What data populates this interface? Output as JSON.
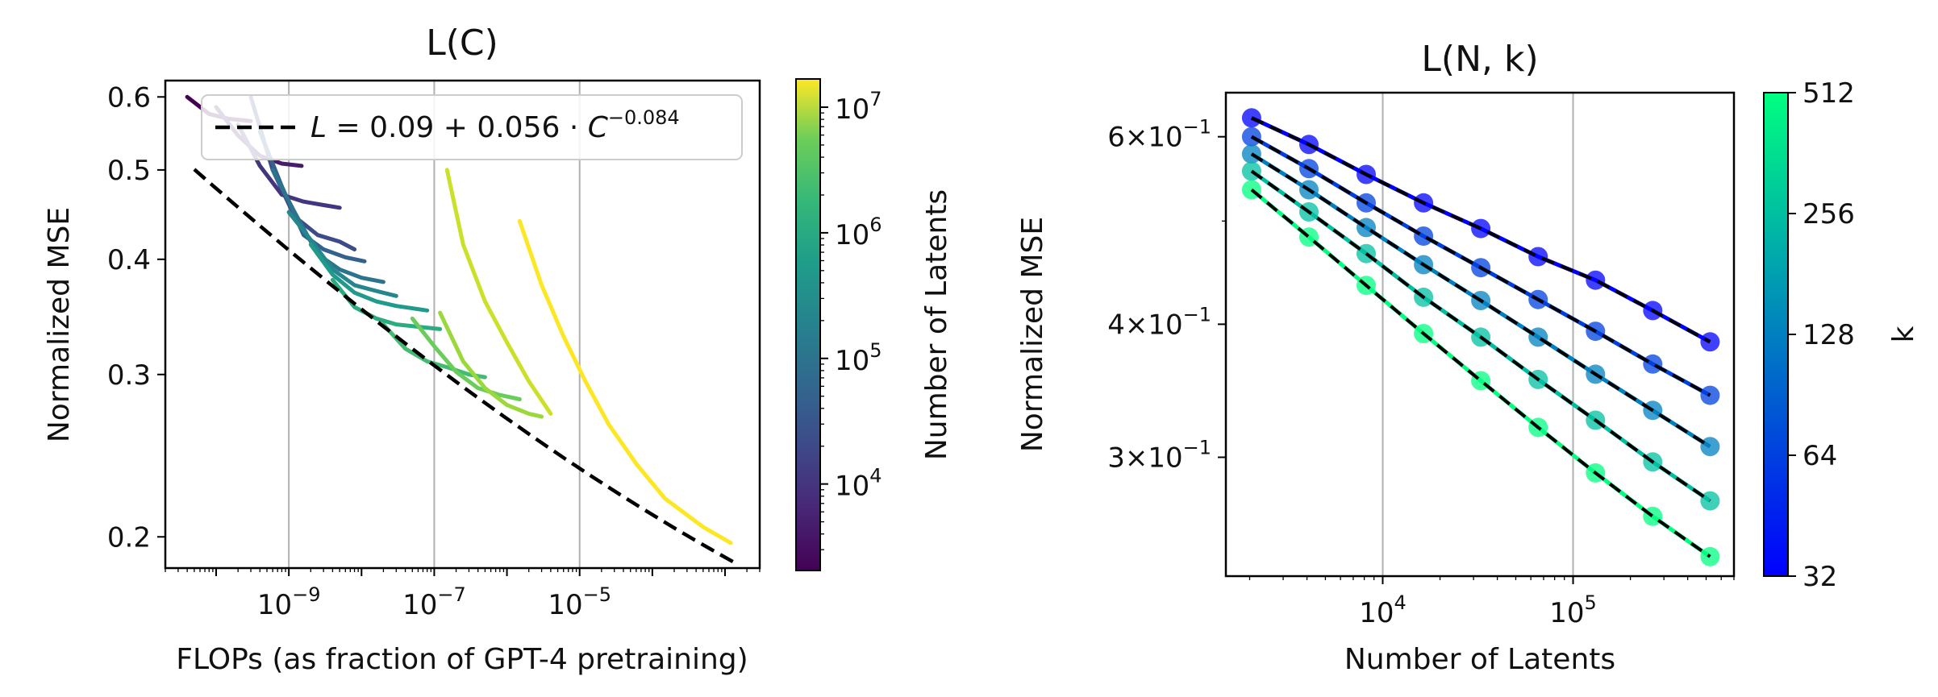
{
  "chart_data": [
    {
      "type": "line",
      "title": "L(C)",
      "xlabel": "FLOPs (as fraction of GPT-4 pretraining)",
      "ylabel": "Normalized MSE",
      "xscale": "log",
      "yscale": "log",
      "xlim": [
        2e-11,
        0.003
      ],
      "ylim": [
        0.185,
        0.625
      ],
      "x_ticks": [
        {
          "value": 1e-09,
          "base": "10",
          "exp": "−9"
        },
        {
          "value": 1e-07,
          "base": "10",
          "exp": "−7"
        },
        {
          "value": 1e-05,
          "base": "10",
          "exp": "−5"
        }
      ],
      "y_ticks": [
        {
          "value": 0.2,
          "label": "0.2"
        },
        {
          "value": 0.3,
          "label": "0.3"
        },
        {
          "value": 0.4,
          "label": "0.4"
        },
        {
          "value": 0.5,
          "label": "0.5"
        },
        {
          "value": 0.6,
          "label": "0.6"
        }
      ],
      "grid": "vertical at major x ticks",
      "legend": {
        "placement": "upper-left",
        "entries": [
          {
            "name": "L = 0.09 + 0.056 · C^−0.084",
            "style": "black dashed"
          }
        ]
      },
      "fit": {
        "type": "power_law",
        "a": 0.09,
        "b": 0.056,
        "exponent": -0.084,
        "x_range": [
          5e-11,
          0.0015
        ]
      },
      "colorbar": {
        "label": "Number of Latents",
        "colormap": "viridis",
        "scale": "log",
        "range": [
          2048,
          16777216
        ],
        "ticks": [
          {
            "value": 10000,
            "base": "10",
            "exp": "4"
          },
          {
            "value": 100000,
            "base": "10",
            "exp": "5"
          },
          {
            "value": 1000000,
            "base": "10",
            "exp": "6"
          },
          {
            "value": 10000000,
            "base": "10",
            "exp": "7"
          }
        ]
      },
      "series": [
        {
          "latents": 2048,
          "x": [
            4e-11,
            8e-11,
            1.5e-10,
            3e-10
          ],
          "y": [
            0.6,
            0.575,
            0.568,
            0.565
          ]
        },
        {
          "latents": 4096,
          "x": [
            1e-10,
            2e-10,
            4e-10,
            8e-10,
            1.5e-09
          ],
          "y": [
            0.585,
            0.545,
            0.518,
            0.508,
            0.505
          ]
        },
        {
          "latents": 8192,
          "x": [
            2e-10,
            4e-10,
            8e-10,
            1.6e-09,
            3e-09,
            5e-09
          ],
          "y": [
            0.56,
            0.505,
            0.47,
            0.462,
            0.458,
            0.455
          ]
        },
        {
          "latents": 16384,
          "x": [
            3e-10,
            6e-10,
            1.2e-09,
            2.5e-09,
            5e-09,
            8e-09
          ],
          "y": [
            0.6,
            0.5,
            0.445,
            0.425,
            0.418,
            0.41
          ]
        },
        {
          "latents": 32768,
          "x": [
            4e-10,
            8e-10,
            1.6e-09,
            3e-09,
            6e-09,
            1.1e-08
          ],
          "y": [
            0.55,
            0.48,
            0.425,
            0.41,
            0.402,
            0.398
          ]
        },
        {
          "latents": 65536,
          "x": [
            6e-10,
            1.2e-09,
            2.5e-09,
            5e-09,
            1e-08,
            2e-08
          ],
          "y": [
            0.5,
            0.45,
            0.405,
            0.39,
            0.382,
            0.378
          ]
        },
        {
          "latents": 131072,
          "x": [
            1e-09,
            2e-09,
            4e-09,
            8e-09,
            1.5e-08,
            3e-08
          ],
          "y": [
            0.45,
            0.42,
            0.39,
            0.375,
            0.37,
            0.365
          ]
        },
        {
          "latents": 262144,
          "x": [
            2e-09,
            4e-09,
            8e-09,
            1.6e-08,
            3e-08,
            8e-08
          ],
          "y": [
            0.415,
            0.385,
            0.368,
            0.36,
            0.356,
            0.352
          ]
        },
        {
          "latents": 524288,
          "x": [
            4e-09,
            8e-09,
            1.6e-08,
            3e-08,
            6e-08,
            1.2e-07
          ],
          "y": [
            0.38,
            0.355,
            0.345,
            0.34,
            0.338,
            0.336
          ]
        },
        {
          "latents": 1048576,
          "x": [
            2e-08,
            4e-08,
            8e-08,
            1.6e-07,
            3e-07,
            5e-07
          ],
          "y": [
            0.34,
            0.32,
            0.31,
            0.305,
            0.3,
            0.298
          ]
        },
        {
          "latents": 2097152,
          "x": [
            5e-08,
            1e-07,
            2e-07,
            4e-07,
            8e-07,
            1.5e-06
          ],
          "y": [
            0.345,
            0.322,
            0.302,
            0.29,
            0.285,
            0.282
          ]
        },
        {
          "latents": 4194304,
          "x": [
            1.2e-07,
            2.5e-07,
            5e-07,
            1e-06,
            2e-06,
            3e-06
          ],
          "y": [
            0.35,
            0.31,
            0.29,
            0.278,
            0.272,
            0.27
          ]
        },
        {
          "latents": 8388608,
          "x": [
            1.5e-07,
            2.5e-07,
            5e-07,
            1e-06,
            2e-06,
            4e-06
          ],
          "y": [
            0.5,
            0.415,
            0.36,
            0.325,
            0.295,
            0.272
          ]
        },
        {
          "latents": 16777216,
          "x": [
            1.5e-06,
            3e-06,
            6e-06,
            1.2e-05,
            2.5e-05,
            6e-05,
            0.00015,
            0.0005,
            0.0012
          ],
          "y": [
            0.44,
            0.375,
            0.33,
            0.295,
            0.265,
            0.24,
            0.22,
            0.205,
            0.197
          ]
        }
      ]
    },
    {
      "type": "line",
      "title": "L(N, k)",
      "xlabel": "Number of Latents",
      "ylabel": "Normalized MSE",
      "xscale": "log",
      "yscale": "log",
      "xlim": [
        1500,
        700000
      ],
      "ylim": [
        0.232,
        0.66
      ],
      "x_ticks": [
        {
          "value": 10000,
          "base": "10",
          "exp": "4"
        },
        {
          "value": 100000,
          "base": "10",
          "exp": "5"
        }
      ],
      "y_ticks": [
        {
          "value": 0.3,
          "mant": "3",
          "base": "10",
          "exp": "−1"
        },
        {
          "value": 0.4,
          "mant": "4",
          "base": "10",
          "exp": "−1"
        },
        {
          "value": 0.6,
          "mant": "6",
          "base": "10",
          "exp": "−1"
        }
      ],
      "grid": "vertical at major x ticks",
      "colorbar": {
        "label": "k",
        "colormap": "winter",
        "scale": "log2",
        "range": [
          32,
          512
        ],
        "ticks": [
          {
            "value": 32,
            "label": "32"
          },
          {
            "value": 64,
            "label": "64"
          },
          {
            "value": 128,
            "label": "128"
          },
          {
            "value": 256,
            "label": "256"
          },
          {
            "value": 512,
            "label": "512"
          }
        ]
      },
      "x": [
        2048,
        4096,
        8192,
        16384,
        32768,
        65536,
        131072,
        262144,
        524288
      ],
      "series": [
        {
          "k": 32,
          "y": [
            0.625,
            0.59,
            0.553,
            0.52,
            0.492,
            0.463,
            0.44,
            0.412,
            0.385
          ]
        },
        {
          "k": 64,
          "y": [
            0.6,
            0.56,
            0.52,
            0.484,
            0.452,
            0.422,
            0.394,
            0.367,
            0.343
          ]
        },
        {
          "k": 128,
          "y": [
            0.578,
            0.535,
            0.493,
            0.455,
            0.421,
            0.389,
            0.359,
            0.332,
            0.307
          ]
        },
        {
          "k": 256,
          "y": [
            0.557,
            0.51,
            0.466,
            0.424,
            0.389,
            0.355,
            0.325,
            0.297,
            0.273
          ]
        },
        {
          "k": 512,
          "y": [
            0.535,
            0.483,
            0.435,
            0.392,
            0.354,
            0.32,
            0.29,
            0.264,
            0.242
          ]
        }
      ]
    }
  ]
}
